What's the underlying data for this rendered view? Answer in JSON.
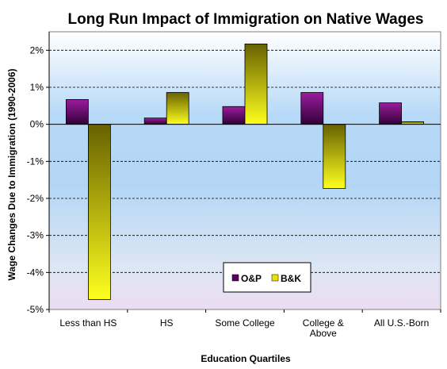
{
  "chart_data": {
    "type": "bar",
    "title": "Long Run Impact of Immigration on Native Wages",
    "xlabel": "Education Quartiles",
    "ylabel": "Wage Changes Due to Immigration (1990-2006)",
    "categories": [
      [
        "Less than HS"
      ],
      [
        "HS"
      ],
      [
        "Some College"
      ],
      [
        "College &",
        "Above"
      ],
      [
        "All U.S.-Born"
      ]
    ],
    "series": [
      {
        "name": "O&P",
        "values": [
          0.67,
          0.17,
          0.48,
          0.86,
          0.58
        ],
        "color": "#5a0060"
      },
      {
        "name": "B&K",
        "values": [
          -4.73,
          0.86,
          2.17,
          -1.73,
          0.07
        ],
        "color": "#e8e400"
      }
    ],
    "ylim": [
      -5,
      2.5
    ],
    "yticks": [
      2,
      1,
      0,
      -1,
      -2,
      -3,
      -4,
      -5
    ],
    "ytick_labels": [
      "2%",
      "1%",
      "0%",
      "-1%",
      "-2%",
      "-3%",
      "-4%",
      "-5%"
    ],
    "grid": true,
    "legend_position": "bottom-center"
  }
}
